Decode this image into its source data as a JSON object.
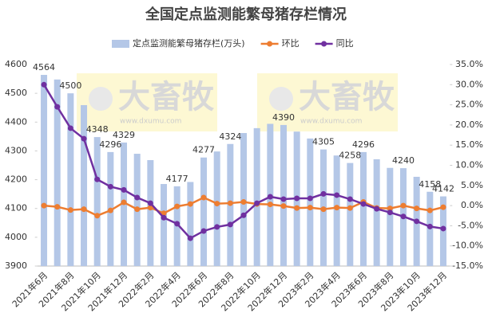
{
  "chart_data": {
    "type": "bar-line",
    "title": "全国定点监测能繁母猪存栏情况",
    "watermarks": [
      {
        "brand": "大畜牧",
        "url": "www.dxumu.com"
      },
      {
        "brand": "大畜牧",
        "url": "www.dxumu.com"
      }
    ],
    "categories": [
      "2021年6月",
      null,
      "2021年8月",
      null,
      "2021年10月",
      null,
      "2021年12月",
      null,
      "2022年2月",
      null,
      "2022年4月",
      null,
      "2022年6月",
      null,
      "2022年8月",
      null,
      "2022年10月",
      null,
      "2022年12月",
      null,
      "2023年2月",
      null,
      "2023年4月",
      null,
      "2023年6月",
      null,
      "2023年8月",
      null,
      "2023年10月",
      null,
      "2023年12月"
    ],
    "series": [
      {
        "name": "定点监测能繁母猪存栏(万头)",
        "type": "bar",
        "color": "#b4c7e7",
        "values": [
          4564,
          4548,
          4500,
          4459,
          4348,
          4296,
          4329,
          4290,
          4268,
          4185,
          4177,
          4192,
          4277,
          4298,
          4324,
          4362,
          4379,
          4394,
          4390,
          4367,
          4343,
          4305,
          4284,
          4258,
          4296,
          4271,
          4241,
          4240,
          4210,
          4158,
          4142
        ],
        "value_labels": [
          "4564",
          null,
          "4500",
          null,
          "4348",
          "4296",
          "4329",
          null,
          null,
          null,
          "4177",
          null,
          "4277",
          null,
          "4324",
          null,
          null,
          null,
          "4390",
          null,
          null,
          "4305",
          null,
          "4258",
          "4296",
          null,
          null,
          "4240",
          null,
          "4158",
          "4142"
        ]
      },
      {
        "name": "环比",
        "type": "line",
        "axis": "y2",
        "color": "#ed7d31",
        "values": [
          0.0,
          -0.3,
          -1.1,
          -0.9,
          -2.5,
          -1.2,
          0.8,
          -0.9,
          -0.5,
          -1.9,
          -0.2,
          0.4,
          2.0,
          0.5,
          0.6,
          0.9,
          0.4,
          0.3,
          -0.1,
          -0.6,
          -0.5,
          -0.9,
          -0.5,
          -0.6,
          0.9,
          -0.6,
          -0.7,
          0.0,
          -0.7,
          -1.2,
          -0.4
        ]
      },
      {
        "name": "同比",
        "type": "line",
        "axis": "y2",
        "color": "#7030a0",
        "values": [
          30.0,
          24.5,
          19.2,
          16.6,
          6.5,
          4.7,
          3.9,
          2.0,
          0.6,
          -3.0,
          -4.5,
          -8.1,
          -6.3,
          -5.3,
          -4.7,
          -2.4,
          0.6,
          2.2,
          1.6,
          1.8,
          1.8,
          2.9,
          2.6,
          1.6,
          0.4,
          -0.8,
          -1.7,
          -2.7,
          -3.9,
          -5.2,
          -5.7
        ]
      }
    ],
    "ylim": [
      3900,
      4600
    ],
    "yticks": [
      3900,
      4000,
      4100,
      4200,
      4300,
      4400,
      4500,
      4600
    ],
    "y2lim": [
      -15,
      35
    ],
    "y2ticks": [
      {
        "value": -15,
        "label": "-15.0%"
      },
      {
        "value": -10,
        "label": "-10.0%"
      },
      {
        "value": -5,
        "label": "-5.0%"
      },
      {
        "value": 0,
        "label": "0.0%"
      },
      {
        "value": 5,
        "label": "5.0%"
      },
      {
        "value": 10,
        "label": "10.0%"
      },
      {
        "value": 15,
        "label": "15.0%"
      },
      {
        "value": 20,
        "label": "20.0%"
      },
      {
        "value": 25,
        "label": "25.0%"
      },
      {
        "value": 30,
        "label": "30.0%"
      },
      {
        "value": 35,
        "label": "35.0%"
      }
    ],
    "legend": "top",
    "grid": false
  }
}
